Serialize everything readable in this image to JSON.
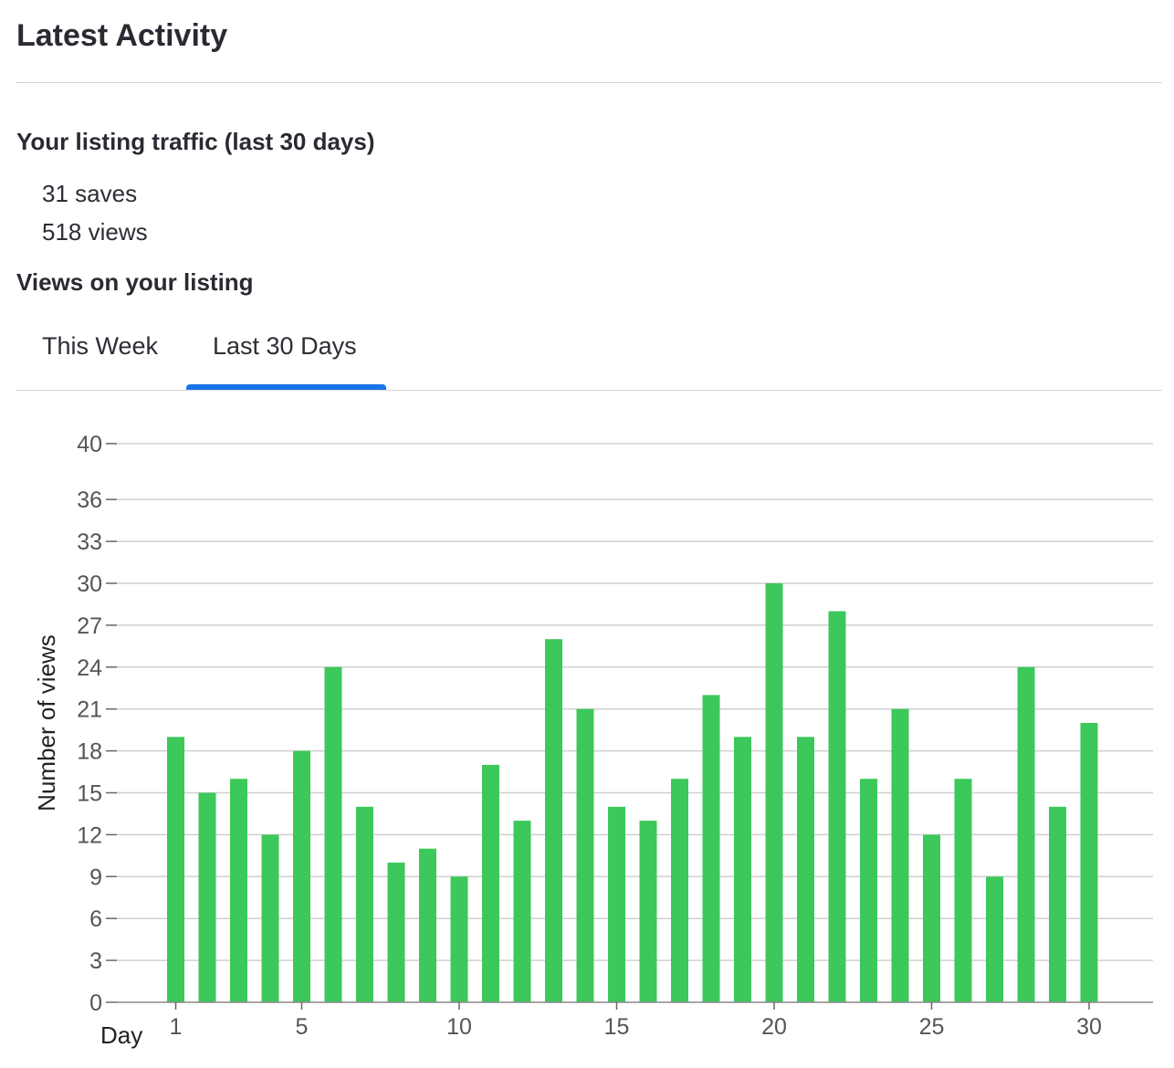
{
  "header": {
    "title": "Latest Activity"
  },
  "traffic": {
    "heading": "Your listing traffic (last 30 days)",
    "saves": "31 saves",
    "views": "518 views"
  },
  "views_section": {
    "heading": "Views on your listing",
    "tabs": [
      {
        "label": "This Week",
        "active": false
      },
      {
        "label": "Last 30 Days",
        "active": true
      }
    ],
    "accent_color": "#1a73e8"
  },
  "chart_data": {
    "type": "bar",
    "xlabel": "Day",
    "ylabel": "Number of views",
    "x": [
      1,
      2,
      3,
      4,
      5,
      6,
      7,
      8,
      9,
      10,
      11,
      12,
      13,
      14,
      15,
      16,
      17,
      18,
      19,
      20,
      21,
      22,
      23,
      24,
      25,
      26,
      27,
      28,
      29,
      30
    ],
    "values": [
      19,
      15,
      16,
      12,
      18,
      24,
      14,
      10,
      11,
      9,
      17,
      13,
      26,
      21,
      14,
      13,
      16,
      22,
      19,
      30,
      19,
      28,
      16,
      21,
      12,
      16,
      9,
      24,
      14,
      20
    ],
    "xticks": [
      1,
      5,
      10,
      15,
      20,
      25,
      30
    ],
    "yticks": [
      0,
      3,
      6,
      9,
      12,
      15,
      18,
      21,
      24,
      27,
      30,
      33,
      36,
      40
    ],
    "ylim": [
      0,
      40
    ],
    "grid": true,
    "bar_color": "#3cc85a"
  }
}
